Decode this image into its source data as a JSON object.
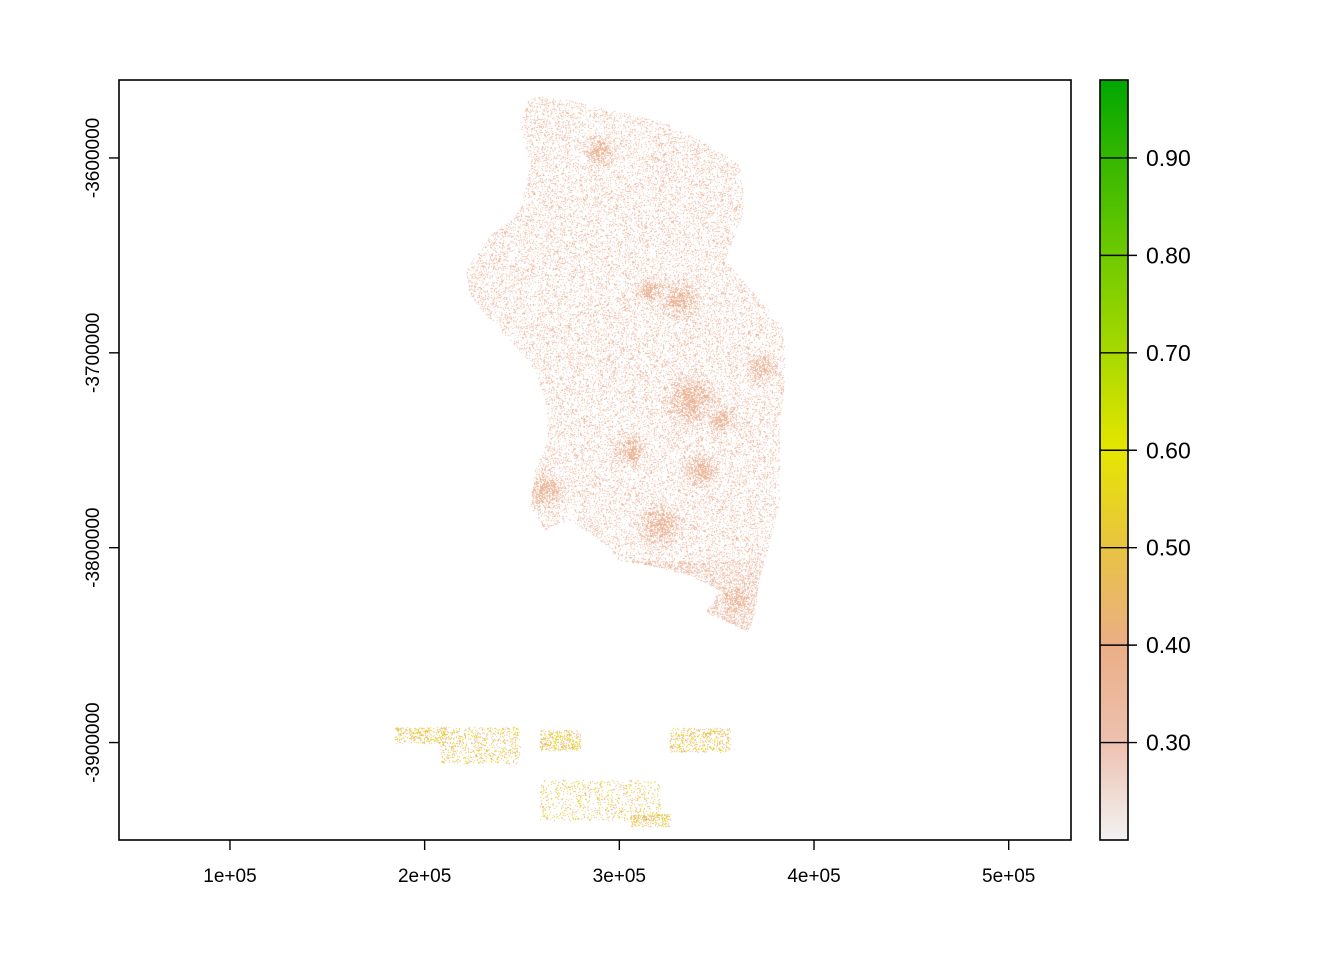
{
  "chart_data": {
    "type": "heatmap",
    "title": "",
    "xlabel": "",
    "ylabel": "",
    "xlim": [
      43000,
      532000
    ],
    "ylim": [
      -3950000,
      -3560000
    ],
    "x_ticks": [
      {
        "value": 100000,
        "label": "1e+05"
      },
      {
        "value": 200000,
        "label": "2e+05"
      },
      {
        "value": 300000,
        "label": "3e+05"
      },
      {
        "value": 400000,
        "label": "4e+05"
      },
      {
        "value": 500000,
        "label": "5e+05"
      }
    ],
    "y_ticks": [
      {
        "value": -3600000,
        "label": "-3600000"
      },
      {
        "value": -3700000,
        "label": "-3700000"
      },
      {
        "value": -3800000,
        "label": "-3800000"
      },
      {
        "value": -3900000,
        "label": "-3900000"
      }
    ],
    "grid": false,
    "colorbar": {
      "placement": "right",
      "range": [
        0.2,
        0.98
      ],
      "ticks": [
        {
          "value": 0.3,
          "label": "0.30"
        },
        {
          "value": 0.4,
          "label": "0.40"
        },
        {
          "value": 0.5,
          "label": "0.50"
        },
        {
          "value": 0.6,
          "label": "0.60"
        },
        {
          "value": 0.7,
          "label": "0.70"
        },
        {
          "value": 0.8,
          "label": "0.80"
        },
        {
          "value": 0.9,
          "label": "0.90"
        }
      ],
      "color_stops": [
        {
          "value": 0.2,
          "color": "#F2F2F2"
        },
        {
          "value": 0.3,
          "color": "#EDC1B0"
        },
        {
          "value": 0.4,
          "color": "#EBAE86"
        },
        {
          "value": 0.5,
          "color": "#E8C342"
        },
        {
          "value": 0.6,
          "color": "#E6E600"
        },
        {
          "value": 0.7,
          "color": "#A8D900"
        },
        {
          "value": 0.8,
          "color": "#6FCA00"
        },
        {
          "value": 0.9,
          "color": "#35B700"
        },
        {
          "value": 0.98,
          "color": "#00A600"
        }
      ]
    }
  }
}
